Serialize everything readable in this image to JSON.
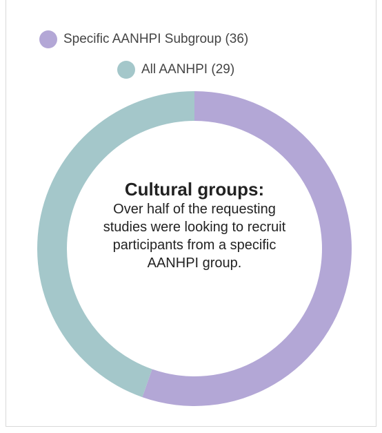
{
  "chart_data": {
    "type": "donut",
    "categories": [
      "Specific AANHPI Subgroup (36)",
      "All AANHPI (29)"
    ],
    "values": [
      36,
      29
    ],
    "colors": [
      "#b3a7d6",
      "#a4c7ca"
    ],
    "title": "Cultural groups:",
    "annotation": "Over half of the requesting studies were looking to recruit participants from a specific AANHPI group."
  }
}
